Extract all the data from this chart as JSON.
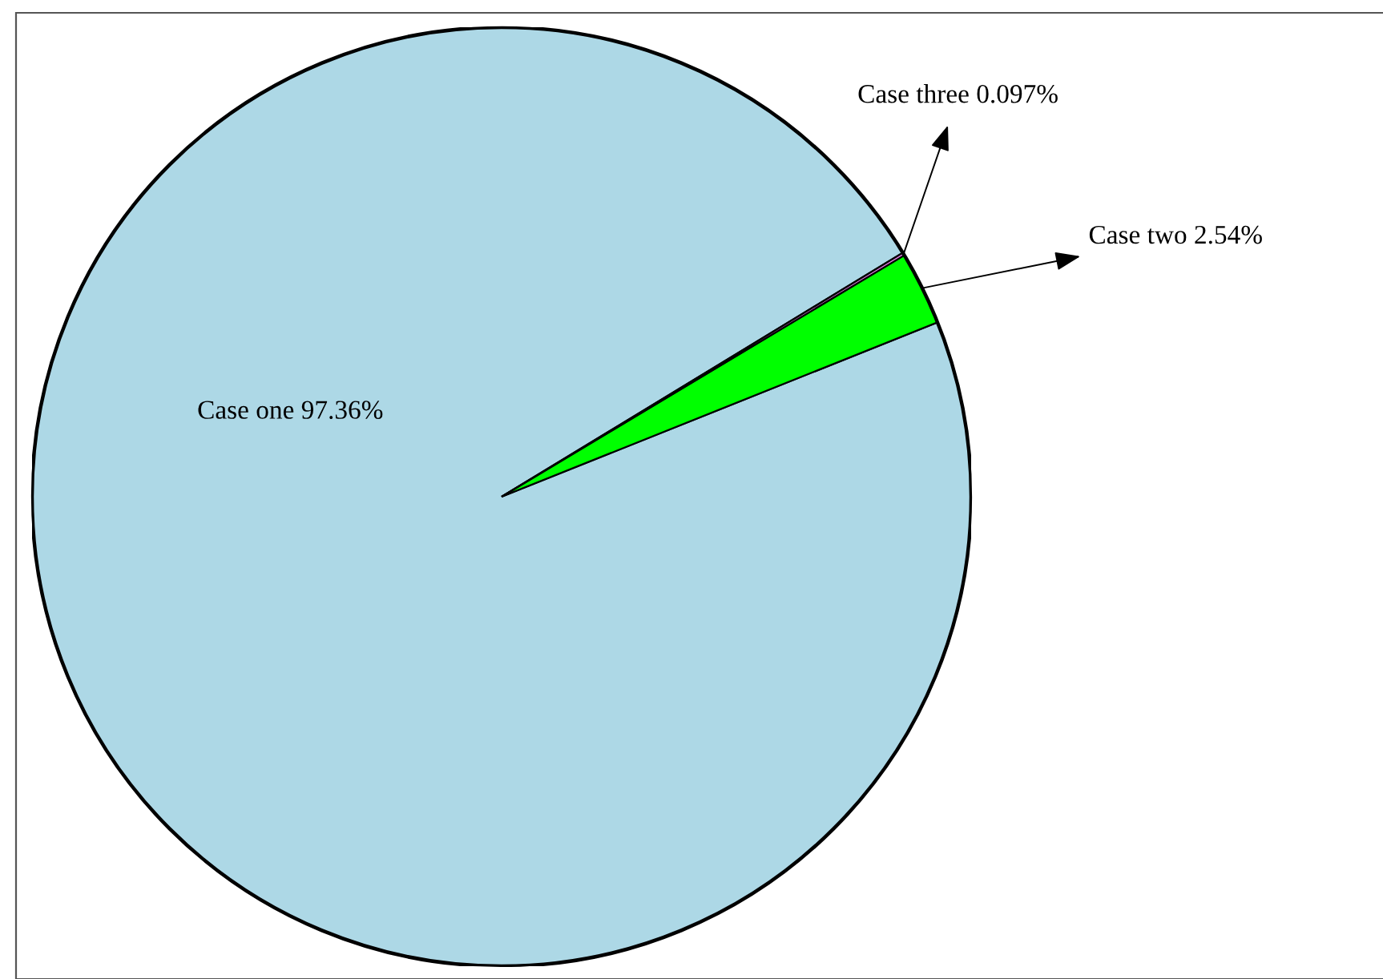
{
  "chart_data": {
    "type": "pie",
    "categories": [
      "Case one",
      "Case two",
      "Case three"
    ],
    "values": [
      97.36,
      2.54,
      0.097
    ],
    "colors": [
      "#add8e6",
      "#00ff00",
      "#ee82ee"
    ],
    "value_labels": [
      "97.36%",
      "2.54%",
      "0.097%"
    ],
    "legend": false
  }
}
